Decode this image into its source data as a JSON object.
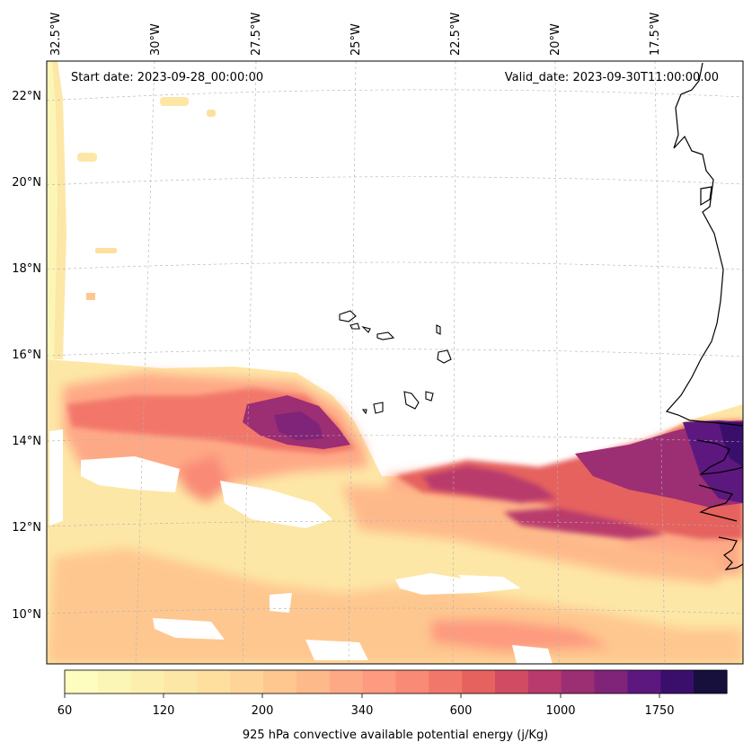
{
  "map": {
    "start_date": "Start date: 2023-09-28_00:00:00",
    "valid_date": "Valid_date: 2023-09-30T11:00:00.00",
    "lon_labels": [
      "32.5°W",
      "30°W",
      "27.5°W",
      "25°W",
      "22.5°W",
      "20°W",
      "17.5°W"
    ],
    "lat_labels": [
      "22°N",
      "20°N",
      "18°N",
      "16°N",
      "14°N",
      "12°N",
      "10°N"
    ]
  },
  "colorbar": {
    "title": "925 hPa convective available potential energy (j/Kg)",
    "tick_labels": [
      "60",
      "120",
      "200",
      "340",
      "600",
      "1000",
      "1750"
    ],
    "colors": [
      "#fcfdbf",
      "#fcf6b6",
      "#fcefae",
      "#fde7a6",
      "#fedf9e",
      "#fed498",
      "#fec78f",
      "#feb98a",
      "#fea986",
      "#fd9a7f",
      "#f98a76",
      "#f2776b",
      "#e5625f",
      "#d14c63",
      "#b93a6c",
      "#9c2e73",
      "#7f2479",
      "#5d1880",
      "#3a0f6c",
      "#170f3c"
    ]
  }
}
